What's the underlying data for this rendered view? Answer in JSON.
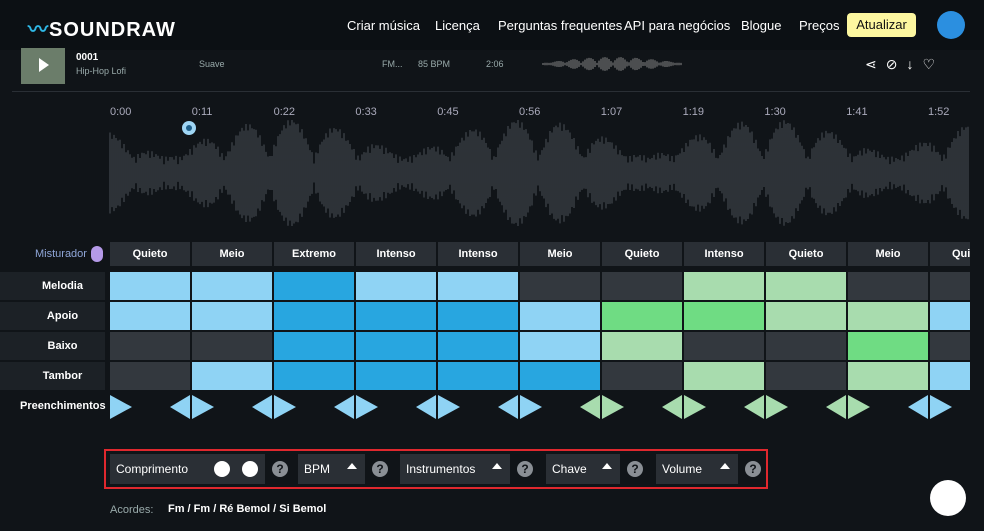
{
  "nav": {
    "logo": "SOUNDRAW",
    "links": [
      "Criar música",
      "Licença",
      "Perguntas frequentes",
      "API para negócios",
      "Blogue",
      "Preços"
    ],
    "upgrade": "Atualizar"
  },
  "track": {
    "id": "0001",
    "genre": "Hip-Hop Lofi",
    "mood": "Suave",
    "key": "FM...",
    "bpm": "85 BPM",
    "duration": "2:06"
  },
  "timeline": [
    "0:00",
    "0:11",
    "0:22",
    "0:33",
    "0:45",
    "0:56",
    "1:07",
    "1:19",
    "1:30",
    "1:41",
    "1:52"
  ],
  "mixer": {
    "label": "Misturador",
    "sections": [
      "Quieto",
      "Meio",
      "Extremo",
      "Intenso",
      "Intenso",
      "Meio",
      "Quieto",
      "Intenso",
      "Quieto",
      "Meio",
      "Quieto"
    ],
    "palettes": [
      "blue",
      "blue",
      "blue",
      "blue",
      "blue",
      "blue",
      "green",
      "green",
      "green",
      "green",
      "blue"
    ],
    "rows": [
      {
        "name": "Melodia",
        "levels": [
          1,
          1,
          2,
          1,
          1,
          0,
          0,
          1,
          1,
          0,
          0
        ]
      },
      {
        "name": "Apoio",
        "levels": [
          1,
          1,
          2,
          2,
          2,
          1,
          2,
          2,
          1,
          1,
          1
        ]
      },
      {
        "name": "Baixo",
        "levels": [
          0,
          0,
          2,
          2,
          2,
          1,
          1,
          0,
          0,
          2,
          0
        ]
      },
      {
        "name": "Tambor",
        "levels": [
          0,
          1,
          2,
          2,
          2,
          2,
          0,
          1,
          0,
          1,
          1
        ]
      }
    ],
    "fills_label": "Preenchimentos"
  },
  "controls": [
    "Comprimento",
    "BPM",
    "Instrumentos",
    "Chave",
    "Volume"
  ],
  "chords": {
    "label": "Acordes:",
    "value": "Fm / Fm / Ré Bemol / Si Bemol"
  }
}
